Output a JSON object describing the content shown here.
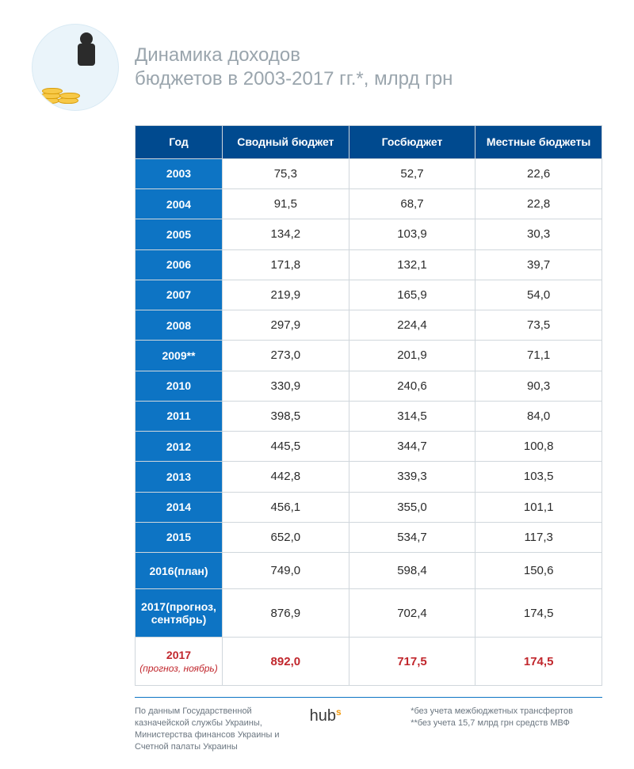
{
  "title_line1": "Динамика доходов",
  "title_line2": "бюджетов в 2003-2017 гг.*, млрд грн",
  "columns": [
    "Год",
    "Сводный бюджет",
    "Госбюджет",
    "Местные бюджеты"
  ],
  "rows": [
    {
      "year": "2003",
      "sub": "",
      "v": [
        "75,3",
        "52,7",
        "22,6"
      ],
      "hl": false,
      "tall": false
    },
    {
      "year": "2004",
      "sub": "",
      "v": [
        "91,5",
        "68,7",
        "22,8"
      ],
      "hl": false,
      "tall": false
    },
    {
      "year": "2005",
      "sub": "",
      "v": [
        "134,2",
        "103,9",
        "30,3"
      ],
      "hl": false,
      "tall": false
    },
    {
      "year": "2006",
      "sub": "",
      "v": [
        "171,8",
        "132,1",
        "39,7"
      ],
      "hl": false,
      "tall": false
    },
    {
      "year": "2007",
      "sub": "",
      "v": [
        "219,9",
        "165,9",
        "54,0"
      ],
      "hl": false,
      "tall": false
    },
    {
      "year": "2008",
      "sub": "",
      "v": [
        "297,9",
        "224,4",
        "73,5"
      ],
      "hl": false,
      "tall": false
    },
    {
      "year": "2009**",
      "sub": "",
      "v": [
        "273,0",
        "201,9",
        "71,1"
      ],
      "hl": false,
      "tall": false
    },
    {
      "year": "2010",
      "sub": "",
      "v": [
        "330,9",
        "240,6",
        "90,3"
      ],
      "hl": false,
      "tall": false
    },
    {
      "year": "2011",
      "sub": "",
      "v": [
        "398,5",
        "314,5",
        "84,0"
      ],
      "hl": false,
      "tall": false
    },
    {
      "year": "2012",
      "sub": "",
      "v": [
        "445,5",
        "344,7",
        "100,8"
      ],
      "hl": false,
      "tall": false
    },
    {
      "year": "2013",
      "sub": "",
      "v": [
        "442,8",
        "339,3",
        "103,5"
      ],
      "hl": false,
      "tall": false
    },
    {
      "year": "2014",
      "sub": "",
      "v": [
        "456,1",
        "355,0",
        "101,1"
      ],
      "hl": false,
      "tall": false
    },
    {
      "year": "2015",
      "sub": "",
      "v": [
        "652,0",
        "534,7",
        "117,3"
      ],
      "hl": false,
      "tall": false
    },
    {
      "year": "2016",
      "sub": "(план)",
      "v": [
        "749,0",
        "598,4",
        "150,6"
      ],
      "hl": false,
      "tall": true
    },
    {
      "year": "2017",
      "sub": "(прогноз, сентябрь)",
      "v": [
        "876,9",
        "702,4",
        "174,5"
      ],
      "hl": false,
      "tall": true
    },
    {
      "year": "2017",
      "sub": "(прогноз, ноябрь)",
      "v": [
        "892,0",
        "717,5",
        "174,5"
      ],
      "hl": true,
      "tall": true
    }
  ],
  "footer": {
    "left": "По данным Государственной казначейской службы Украины, Министерства финансов Украины и Счетной палаты Украины",
    "logo_main": "hub",
    "logo_sup": "s",
    "right1": "*без учета межбюджетных трансфертов",
    "right2": "**без учета 15,7 млрд грн средств МВФ"
  },
  "colors": {
    "header_bg": "#004a8f",
    "year_bg": "#0d74c4",
    "highlight": "#c1272d",
    "border": "#d0d7dc",
    "title": "#9aa5ad",
    "footer_rule": "#0d74c4",
    "coin": "#f7c948"
  }
}
